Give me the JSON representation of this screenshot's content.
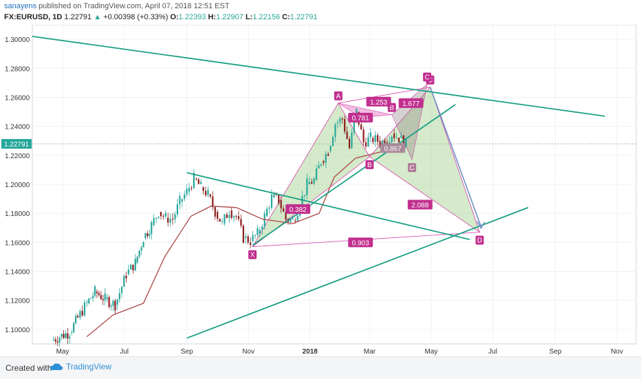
{
  "header": {
    "author": "sanayens",
    "published_text": " published on TradingView.com, April 07, 2018 12:51 EST",
    "symbol": "FX:EURUSD, 1D",
    "last": "1.22791",
    "change": "+0.00398 (+0.33%)",
    "o_label": "O:",
    "o_value": "1.22393",
    "h_label": "H:",
    "h_value": "1.22907",
    "l_label": "L:",
    "l_value": "1.22156",
    "c_label": "C:",
    "c_value": "1.22791"
  },
  "footer": {
    "created_with": "Created with",
    "brand": "TradingView"
  },
  "colors": {
    "up": "#26a69a",
    "down": "#8b1a1a",
    "trend": "#1aa084",
    "pattern_fill": "#9fd08a",
    "pattern_pink": "#d63faa",
    "label_bg": "#c2308f",
    "ma": "#b05050",
    "arrow": "#6f8fbf"
  },
  "chart_data": {
    "type": "candlestick",
    "symbol": "FX:EURUSD",
    "interval": "1D",
    "ylim": [
      1.09,
      1.31
    ],
    "y_ticks": [
      "1.30000",
      "1.28000",
      "1.26000",
      "1.24000",
      "1.22000",
      "1.20000",
      "1.18000",
      "1.16000",
      "1.14000",
      "1.12000",
      "1.10000"
    ],
    "x_ticks": [
      "May",
      "Jul",
      "Sep",
      "Nov",
      "2018",
      "Mar",
      "May",
      "Jul",
      "Sep",
      "Nov"
    ],
    "last_price_label": "1.22791",
    "price_path": [
      [
        "2017-04-20",
        1.0925
      ],
      [
        "2017-04-28",
        1.095
      ],
      [
        "2017-05-08",
        1.098
      ],
      [
        "2017-05-16",
        1.108
      ],
      [
        "2017-05-25",
        1.118
      ],
      [
        "2017-06-02",
        1.126
      ],
      [
        "2017-06-12",
        1.121
      ],
      [
        "2017-06-22",
        1.117
      ],
      [
        "2017-07-03",
        1.138
      ],
      [
        "2017-07-12",
        1.146
      ],
      [
        "2017-07-20",
        1.163
      ],
      [
        "2017-07-28",
        1.172
      ],
      [
        "2017-08-04",
        1.181
      ],
      [
        "2017-08-11",
        1.177
      ],
      [
        "2017-08-18",
        1.176
      ],
      [
        "2017-08-25",
        1.188
      ],
      [
        "2017-09-01",
        1.195
      ],
      [
        "2017-09-08",
        1.204
      ],
      [
        "2017-09-15",
        1.198
      ],
      [
        "2017-09-22",
        1.193
      ],
      [
        "2017-09-29",
        1.181
      ],
      [
        "2017-10-06",
        1.173
      ],
      [
        "2017-10-13",
        1.182
      ],
      [
        "2017-10-20",
        1.178
      ],
      [
        "2017-10-27",
        1.163
      ],
      [
        "2017-11-03",
        1.161
      ],
      [
        "2017-11-10",
        1.166
      ],
      [
        "2017-11-17",
        1.178
      ],
      [
        "2017-11-24",
        1.191
      ],
      [
        "2017-12-01",
        1.189
      ],
      [
        "2017-12-08",
        1.176
      ],
      [
        "2017-12-15",
        1.175
      ],
      [
        "2017-12-22",
        1.186
      ],
      [
        "2017-12-29",
        1.2
      ],
      [
        "2018-01-05",
        1.203
      ],
      [
        "2018-01-12",
        1.216
      ],
      [
        "2018-01-19",
        1.223
      ],
      [
        "2018-01-26",
        1.242
      ],
      [
        "2018-02-02",
        1.245
      ],
      [
        "2018-02-09",
        1.225
      ],
      [
        "2018-02-16",
        1.25
      ],
      [
        "2018-02-23",
        1.229
      ],
      [
        "2018-03-02",
        1.232
      ],
      [
        "2018-03-09",
        1.23
      ],
      [
        "2018-03-16",
        1.229
      ],
      [
        "2018-03-23",
        1.235
      ],
      [
        "2018-03-30",
        1.232
      ],
      [
        "2018-04-06",
        1.228
      ]
    ],
    "moving_average": [
      [
        "2017-05-25",
        1.095
      ],
      [
        "2017-06-20",
        1.11
      ],
      [
        "2017-07-20",
        1.118
      ],
      [
        "2017-08-10",
        1.15
      ],
      [
        "2017-09-05",
        1.178
      ],
      [
        "2017-09-25",
        1.185
      ],
      [
        "2017-10-20",
        1.184
      ],
      [
        "2017-11-15",
        1.176
      ],
      [
        "2017-12-15",
        1.173
      ],
      [
        "2018-01-10",
        1.18
      ],
      [
        "2018-01-25",
        1.205
      ],
      [
        "2018-02-15",
        1.218
      ],
      [
        "2018-03-10",
        1.222
      ],
      [
        "2018-04-06",
        1.226
      ]
    ],
    "trendlines": [
      {
        "from": [
          "2017-04-01",
          1.302
        ],
        "to": [
          "2018-10-20",
          1.247
        ]
      },
      {
        "from": [
          "2017-09-01",
          1.208
        ],
        "to": [
          "2018-06-08",
          1.162
        ]
      },
      {
        "from": [
          "2017-09-01",
          1.094
        ],
        "to": [
          "2018-08-05",
          1.184
        ]
      },
      {
        "from": [
          "2017-11-05",
          1.158
        ],
        "to": [
          "2018-05-25",
          1.255
        ]
      }
    ],
    "harmonic_points": [
      {
        "label": "X",
        "date": "2017-11-05",
        "price": 1.157
      },
      {
        "label": "A",
        "date": "2018-01-29",
        "price": 1.256
      },
      {
        "label": "B",
        "date": "2018-03-01",
        "price": 1.219
      },
      {
        "label": "C",
        "date": "2018-04-30",
        "price": 1.267
      },
      {
        "label": "D",
        "date": "2018-06-18",
        "price": 1.167
      }
    ],
    "inner_points": [
      {
        "label": "B",
        "date": "2018-03-23",
        "price": 1.248
      },
      {
        "label": "C",
        "date": "2018-04-12",
        "price": 1.217
      },
      {
        "label": "C",
        "date": "2018-04-27",
        "price": 1.269
      }
    ],
    "ratios": [
      {
        "text": "0.382",
        "date": "2017-12-20",
        "price": 1.183
      },
      {
        "text": "0.781",
        "date": "2018-02-20",
        "price": 1.246
      },
      {
        "text": "1.253",
        "date": "2018-03-10",
        "price": 1.257
      },
      {
        "text": "1.677",
        "date": "2018-04-11",
        "price": 1.256
      },
      {
        "text": "0.867",
        "date": "2018-03-24",
        "price": 1.225
      },
      {
        "text": "2.088",
        "date": "2018-04-20",
        "price": 1.186
      },
      {
        "text": "0.903",
        "date": "2018-02-20",
        "price": 1.16
      }
    ]
  }
}
